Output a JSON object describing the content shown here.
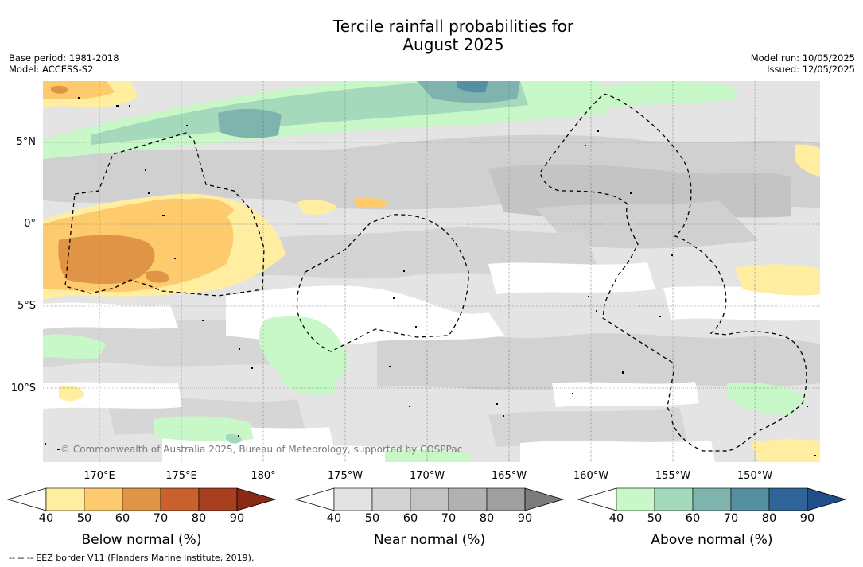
{
  "title_line1": "Tercile rainfall probabilities for",
  "title_line2": "August 2025",
  "base_period": "Base period: 1981-2018",
  "model": "Model: ACCESS-S2",
  "model_run": "Model run: 10/05/2025",
  "issued": "Issued: 12/05/2025",
  "lat_labels": [
    "5°N",
    "0°",
    "5°S",
    "10°S"
  ],
  "lon_labels": [
    "170°E",
    "175°E",
    "180°",
    "175°W",
    "170°W",
    "165°W",
    "160°W",
    "155°W",
    "150°W"
  ],
  "copyright": "© Commonwealth of Australia 2025, Bureau of Meteorology, supported by COSPPac",
  "footer": "-- -- -- EEZ border V11 (Flanders Marine Institute, 2019).",
  "colorbars": [
    {
      "title": "Below normal (%)",
      "ticks": [
        "40",
        "50",
        "60",
        "70",
        "80",
        "90"
      ],
      "colors": [
        "#ffeda0",
        "#fdcb6e",
        "#e09445",
        "#c9602e",
        "#a8401f"
      ],
      "extend_color": "#8b2a14"
    },
    {
      "title": "Near normal (%)",
      "ticks": [
        "40",
        "50",
        "60",
        "70",
        "80",
        "90"
      ],
      "colors": [
        "#e3e3e3",
        "#d3d3d3",
        "#c3c3c3",
        "#b1b1b1",
        "#9f9f9f"
      ],
      "extend_color": "#7c7c7c"
    },
    {
      "title": "Above normal (%)",
      "ticks": [
        "40",
        "50",
        "60",
        "70",
        "80",
        "90"
      ],
      "colors": [
        "#c8f7c8",
        "#a5d9bc",
        "#7fb4ae",
        "#5590a2",
        "#2f6498"
      ],
      "extend_color": "#1f4e8a"
    }
  ]
}
